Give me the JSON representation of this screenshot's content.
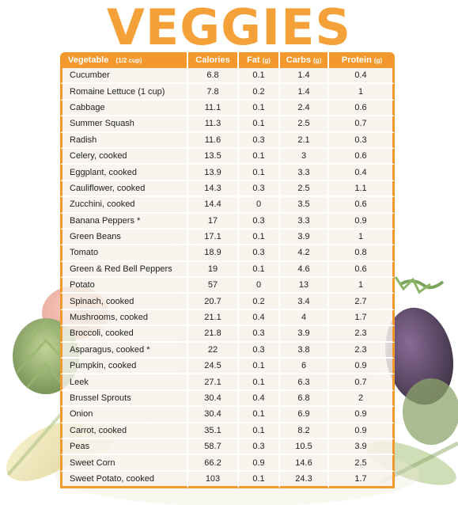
{
  "title": "VEGGIES",
  "colors": {
    "accent": "#f3982c",
    "row_bg": "#f6f3ec"
  },
  "table": {
    "headers": [
      {
        "label": "Vegetable",
        "unit": "(1/2 cup)"
      },
      {
        "label": "Calories",
        "unit": ""
      },
      {
        "label": "Fat",
        "unit": "(g)"
      },
      {
        "label": "Carbs",
        "unit": "(g)"
      },
      {
        "label": "Protein",
        "unit": "(g)"
      }
    ],
    "rows": [
      [
        "Cucumber",
        "6.8",
        "0.1",
        "1.4",
        "0.4"
      ],
      [
        "Romaine Lettuce (1 cup)",
        "7.8",
        "0.2",
        "1.4",
        "1"
      ],
      [
        "Cabbage",
        "11.1",
        "0.1",
        "2.4",
        "0.6"
      ],
      [
        "Summer Squash",
        "11.3",
        "0.1",
        "2.5",
        "0.7"
      ],
      [
        "Radish",
        "11.6",
        "0.3",
        "2.1",
        "0.3"
      ],
      [
        "Celery, cooked",
        "13.5",
        "0.1",
        "3",
        "0.6"
      ],
      [
        "Eggplant, cooked",
        "13.9",
        "0.1",
        "3.3",
        "0.4"
      ],
      [
        "Cauliflower, cooked",
        "14.3",
        "0.3",
        "2.5",
        "1.1"
      ],
      [
        "Zucchini, cooked",
        "14.4",
        "0",
        "3.5",
        "0.6"
      ],
      [
        "Banana Peppers *",
        "17",
        "0.3",
        "3.3",
        "0.9"
      ],
      [
        "Green Beans",
        "17.1",
        "0.1",
        "3.9",
        "1"
      ],
      [
        "Tomato",
        "18.9",
        "0.3",
        "4.2",
        "0.8"
      ],
      [
        "Green & Red Bell Peppers",
        "19",
        "0.1",
        "4.6",
        "0.6"
      ],
      [
        "Potato",
        "57",
        "0",
        "13",
        "1"
      ],
      [
        "Spinach, cooked",
        "20.7",
        "0.2",
        "3.4",
        "2.7"
      ],
      [
        "Mushrooms, cooked",
        "21.1",
        "0.4",
        "4",
        "1.7"
      ],
      [
        "Broccoli, cooked",
        "21.8",
        "0.3",
        "3.9",
        "2.3"
      ],
      [
        "Asparagus, cooked *",
        "22",
        "0.3",
        "3.8",
        "2.3"
      ],
      [
        "Pumpkin, cooked",
        "24.5",
        "0.1",
        "6",
        "0.9"
      ],
      [
        "Leek",
        "27.1",
        "0.1",
        "6.3",
        "0.7"
      ],
      [
        "Brussel Sprouts",
        "30.4",
        "0.4",
        "6.8",
        "2"
      ],
      [
        "Onion",
        "30.4",
        "0.1",
        "6.9",
        "0.9"
      ],
      [
        "Carrot, cooked",
        "35.1",
        "0.1",
        "8.2",
        "0.9"
      ],
      [
        "Peas",
        "58.7",
        "0.3",
        "10.5",
        "3.9"
      ],
      [
        "Sweet Corn",
        "66.2",
        "0.9",
        "14.6",
        "2.5"
      ],
      [
        "Sweet Potato, cooked",
        "103",
        "0.1",
        "24.3",
        "1.7"
      ]
    ]
  }
}
